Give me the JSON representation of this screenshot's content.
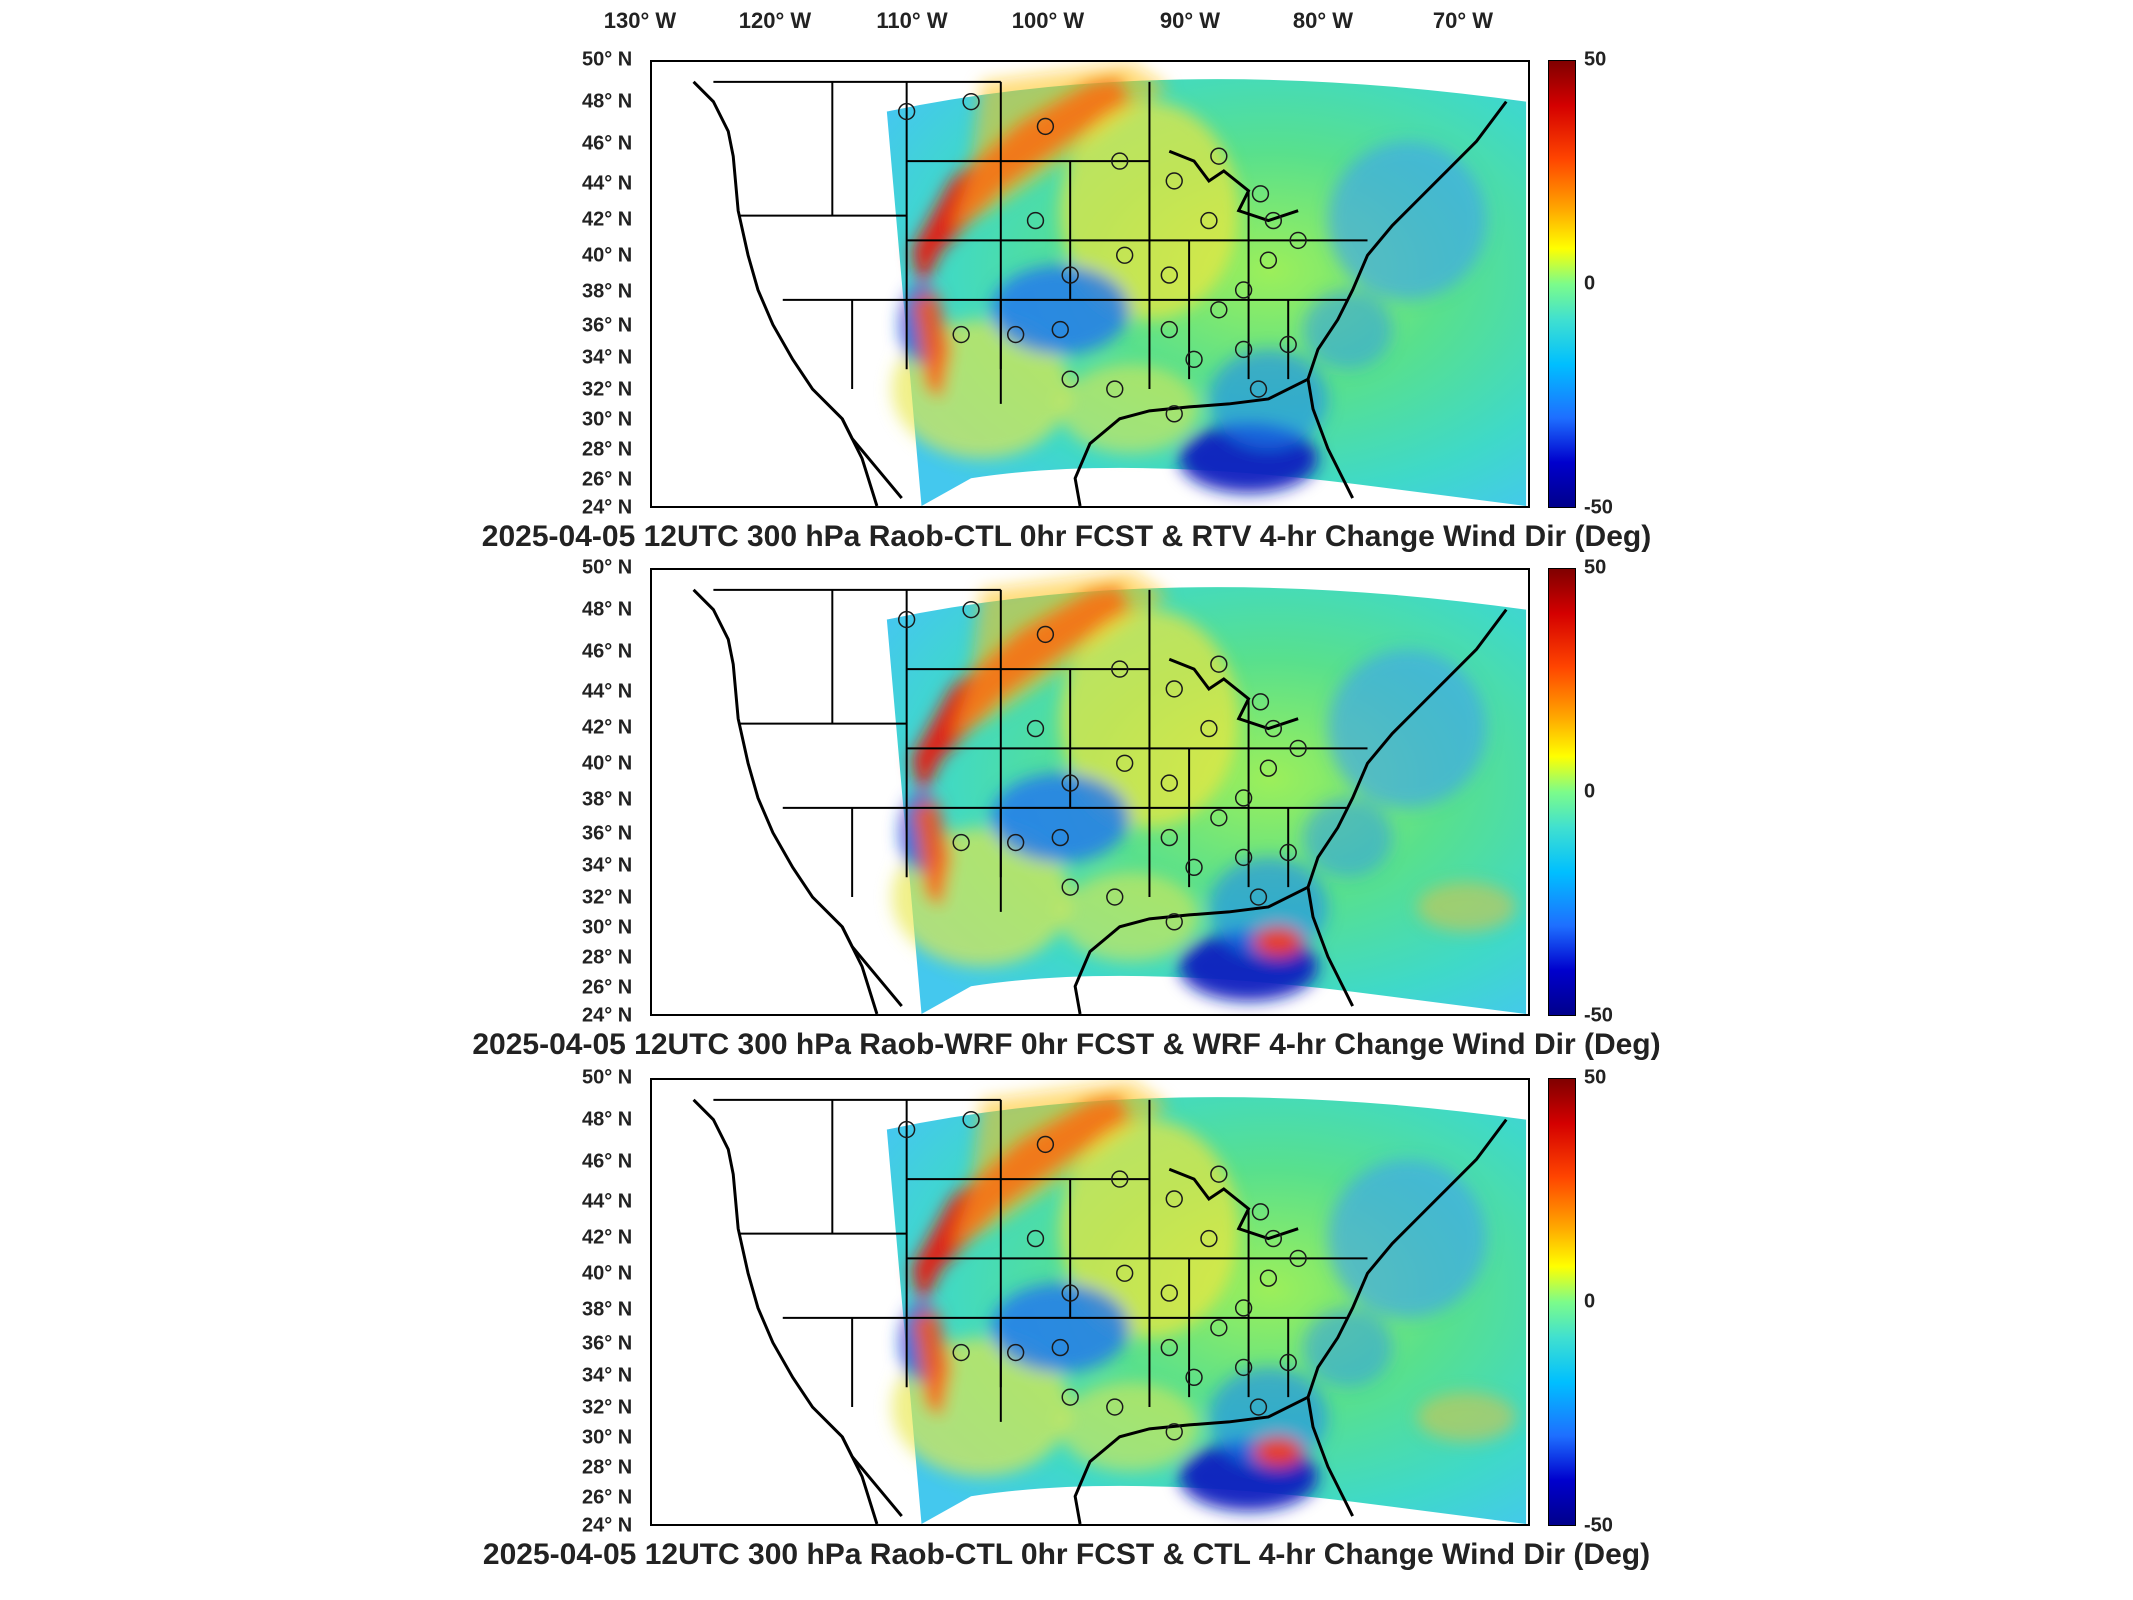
{
  "lon_labels": [
    "130° W",
    "120° W",
    "110° W",
    "100° W",
    "90° W",
    "80° W",
    "70° W"
  ],
  "lat_labels": [
    "50° N",
    "48° N",
    "46° N",
    "44° N",
    "42° N",
    "40° N",
    "38° N",
    "36° N",
    "34° N",
    "32° N",
    "30° N",
    "28° N",
    "26° N",
    "24° N"
  ],
  "colorbar": {
    "max": "50",
    "mid": "0",
    "min": "-50",
    "colors": [
      "#800000",
      "#d40000",
      "#ff4500",
      "#ffa500",
      "#ffff00",
      "#7cfc8a",
      "#40e0d0",
      "#00bfff",
      "#1e6fff",
      "#0000cd",
      "#00008b"
    ]
  },
  "panels": [
    {
      "title": "2025-04-05 12UTC 300 hPa Raob-CTL 0hr FCST & RTV 4-hr Change Wind Dir (Deg)"
    },
    {
      "title": "2025-04-05 12UTC 300 hPa Raob-WRF 0hr FCST & WRF 4-hr Change Wind Dir (Deg)"
    },
    {
      "title": "2025-04-05 12UTC 300 hPa Raob-CTL 0hr FCST & CTL 4-hr Change Wind Dir (Deg)"
    }
  ]
}
